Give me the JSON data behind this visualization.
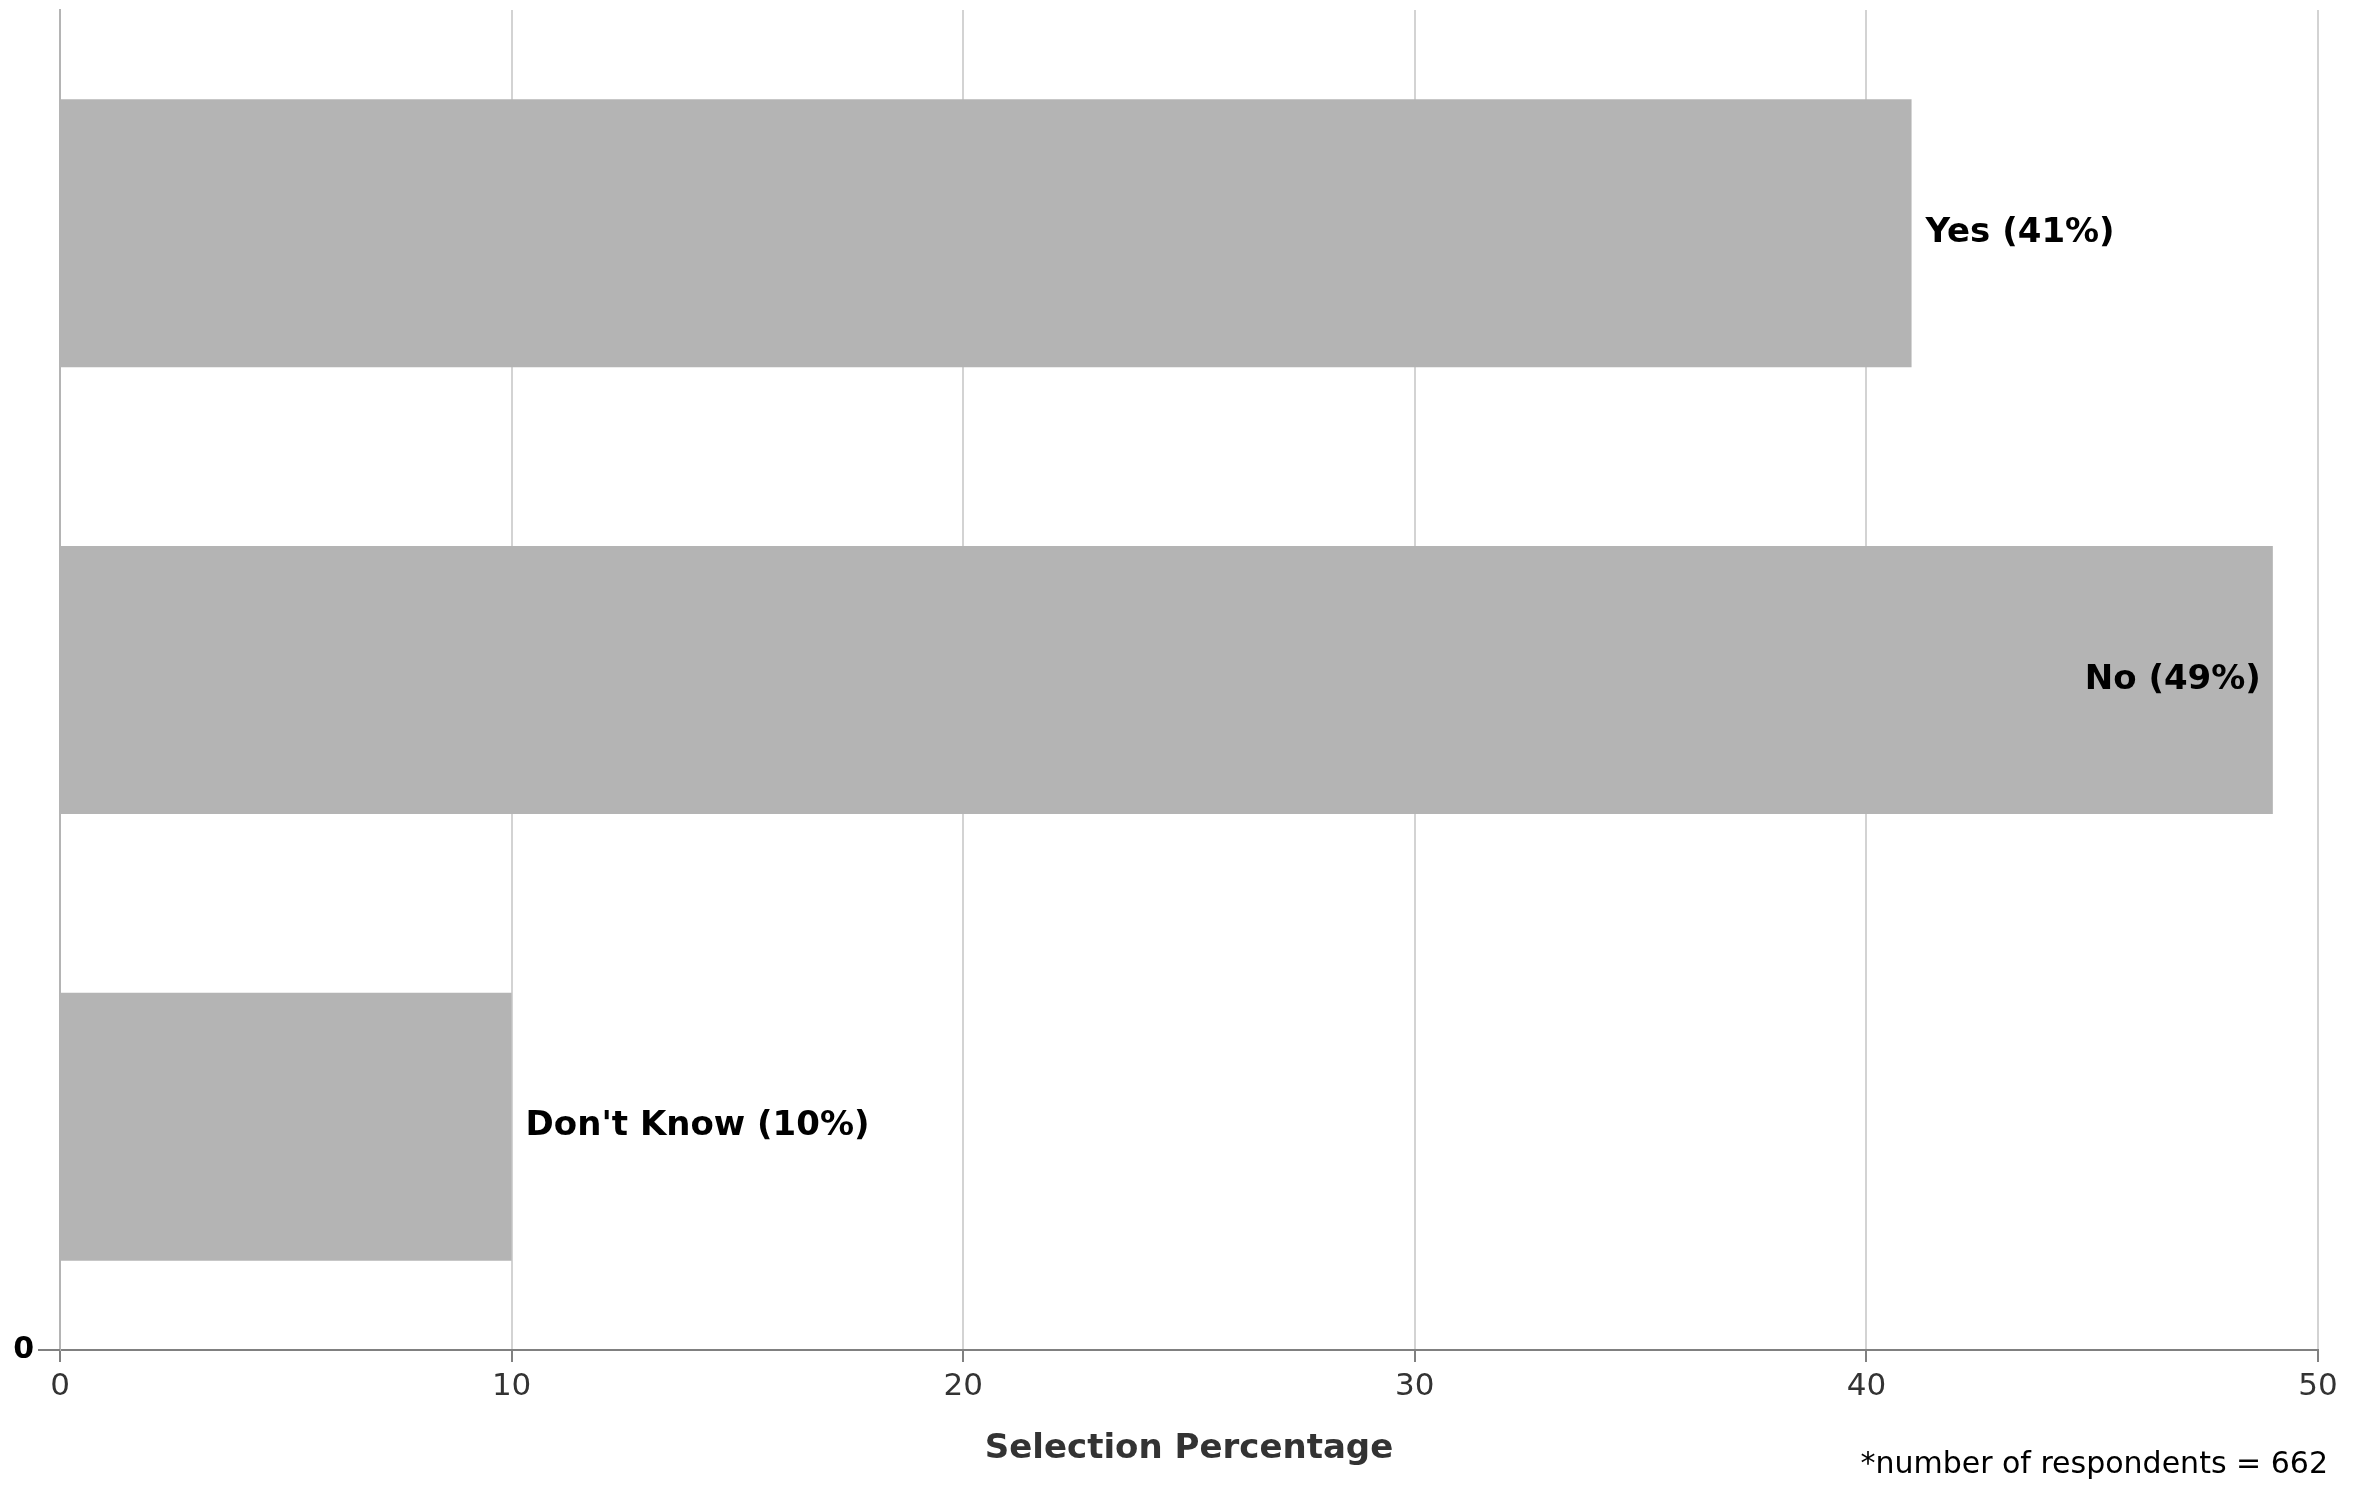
{
  "chart_data": {
    "type": "bar",
    "orientation": "horizontal",
    "xlabel": "Selection Percentage",
    "categories": [
      null,
      null,
      null
    ],
    "values": [
      41,
      49,
      10
    ],
    "value_labels": [
      "Yes (41%)",
      "No (49%)",
      "Don't Know (10%)"
    ],
    "color": "#b4b4b4",
    "xlim": [
      0,
      50
    ],
    "xticks": [
      0,
      10,
      20,
      30,
      40,
      50
    ],
    "grid": "x",
    "annotations": [
      "0",
      "*number of respondents = 662"
    ]
  }
}
